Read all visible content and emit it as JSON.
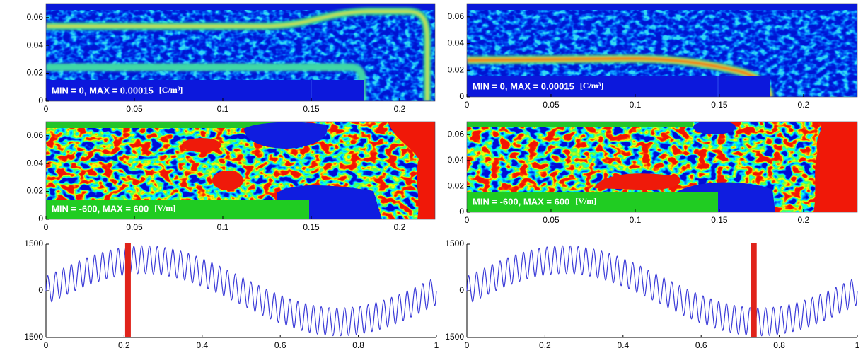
{
  "chart_data": [
    {
      "type": "heatmap",
      "annotation": "MIN = 0, MAX = 0.00015",
      "unit": "[C/m³]",
      "xlim": [
        0,
        0.22
      ],
      "ylim": [
        0,
        0.07
      ],
      "xticks": [
        0,
        0.05,
        0.1,
        0.15,
        0.2
      ],
      "yticks": [
        0,
        0.02,
        0.04,
        0.06
      ]
    },
    {
      "type": "heatmap",
      "annotation": "MIN = 0, MAX = 0.00015",
      "unit": "[C/m³]",
      "xlim": [
        0,
        0.232
      ],
      "ylim": [
        0,
        0.07
      ],
      "xticks": [
        0,
        0.05,
        0.1,
        0.15,
        0.2
      ],
      "yticks": [
        0,
        0.02,
        0.04,
        0.06
      ]
    },
    {
      "type": "heatmap",
      "annotation": "MIN = -600, MAX = 600",
      "unit": "[V/m]",
      "xlim": [
        0,
        0.22
      ],
      "ylim": [
        0,
        0.07
      ],
      "xticks": [
        0,
        0.05,
        0.1,
        0.15,
        0.2
      ],
      "yticks": [
        0,
        0.02,
        0.04,
        0.06
      ]
    },
    {
      "type": "heatmap",
      "annotation": "MIN = -600, MAX = 600",
      "unit": "[V/m]",
      "xlim": [
        0,
        0.232
      ],
      "ylim": [
        0,
        0.07
      ],
      "xticks": [
        0,
        0.05,
        0.1,
        0.15,
        0.2
      ],
      "yticks": [
        0,
        0.02,
        0.04,
        0.06
      ]
    },
    {
      "type": "line",
      "xlim": [
        0,
        1
      ],
      "ylim": [
        -1500,
        1500
      ],
      "xticks": [
        0,
        0.2,
        0.4,
        0.6,
        0.8,
        1
      ],
      "yticks": [
        {
          "value": -1500,
          "label": "1500"
        },
        0,
        1500
      ],
      "cursor_x": 0.21,
      "cursor_color": "#e0231a",
      "x": [
        0,
        0.005,
        0.015,
        0.025,
        0.035,
        0.045,
        0.055,
        0.065,
        0.075,
        0.085,
        0.095,
        0.105,
        0.115,
        0.125,
        0.135,
        0.145,
        0.155,
        0.165,
        0.175,
        0.185,
        0.195,
        0.205,
        0.215,
        0.225,
        0.235,
        0.245,
        0.255,
        0.265,
        0.275,
        0.285,
        0.295,
        0.305,
        0.315,
        0.325,
        0.335,
        0.345,
        0.355,
        0.365,
        0.375,
        0.385,
        0.395,
        0.405,
        0.415,
        0.425,
        0.435,
        0.445,
        0.455,
        0.465,
        0.475,
        0.485,
        0.495,
        0.505,
        0.515,
        0.525,
        0.535,
        0.545,
        0.555,
        0.565,
        0.575,
        0.585,
        0.595,
        0.605,
        0.615,
        0.625,
        0.635,
        0.645,
        0.655,
        0.665,
        0.675,
        0.685,
        0.695,
        0.705,
        0.715,
        0.725,
        0.735,
        0.745,
        0.755,
        0.765,
        0.775,
        0.785,
        0.795,
        0.805,
        0.815,
        0.825,
        0.835,
        0.845,
        0.855,
        0.865,
        0.875,
        0.885,
        0.895,
        0.905,
        0.915,
        0.925,
        0.935,
        0.945,
        0.955,
        0.965,
        0.975,
        0.985,
        0.995,
        1
      ],
      "series": [
        {
          "color": "#3a3ad8",
          "values": [
            0,
            481,
            -356,
            606,
            -232,
            729,
            -111,
            847,
            4,
            959,
            112,
            1063,
            211,
            1157,
            300,
            1240,
            377,
            1311,
            441,
            1368,
            491,
            1410,
            526,
            1438,
            546,
            1450,
            550,
            1446,
            538,
            1426,
            510,
            1391,
            468,
            1341,
            411,
            1277,
            340,
            1200,
            257,
            1111,
            163,
            1012,
            59,
            904,
            -53,
            789,
            -171,
            668,
            -294,
            544,
            -419,
            419,
            -544,
            294,
            -668,
            171,
            -789,
            53,
            -904,
            -59,
            -1012,
            -163,
            -1111,
            -257,
            -1200,
            -340,
            -1277,
            -411,
            -1341,
            -468,
            -1391,
            -510,
            -1426,
            -538,
            -1446,
            -550,
            -1450,
            -546,
            -1438,
            -526,
            -1410,
            -491,
            -1368,
            -441,
            -1311,
            -377,
            -1240,
            -300,
            -1157,
            -211,
            -1063,
            -112,
            -959,
            -4,
            -847,
            111,
            -729,
            232,
            -606,
            356,
            -481,
            0
          ]
        }
      ]
    },
    {
      "type": "line",
      "xlim": [
        0,
        1
      ],
      "ylim": [
        -1500,
        1500
      ],
      "xticks": [
        0,
        0.2,
        0.4,
        0.6,
        0.8,
        1
      ],
      "yticks": [
        {
          "value": -1500,
          "label": "1500"
        },
        0,
        1500
      ],
      "cursor_x": 0.735,
      "cursor_color": "#e0231a",
      "x": [
        0,
        0.005,
        0.015,
        0.025,
        0.035,
        0.045,
        0.055,
        0.065,
        0.075,
        0.085,
        0.095,
        0.105,
        0.115,
        0.125,
        0.135,
        0.145,
        0.155,
        0.165,
        0.175,
        0.185,
        0.195,
        0.205,
        0.215,
        0.225,
        0.235,
        0.245,
        0.255,
        0.265,
        0.275,
        0.285,
        0.295,
        0.305,
        0.315,
        0.325,
        0.335,
        0.345,
        0.355,
        0.365,
        0.375,
        0.385,
        0.395,
        0.405,
        0.415,
        0.425,
        0.435,
        0.445,
        0.455,
        0.465,
        0.475,
        0.485,
        0.495,
        0.505,
        0.515,
        0.525,
        0.535,
        0.545,
        0.555,
        0.565,
        0.575,
        0.585,
        0.595,
        0.605,
        0.615,
        0.625,
        0.635,
        0.645,
        0.655,
        0.665,
        0.675,
        0.685,
        0.695,
        0.705,
        0.715,
        0.725,
        0.735,
        0.745,
        0.755,
        0.765,
        0.775,
        0.785,
        0.795,
        0.805,
        0.815,
        0.825,
        0.835,
        0.845,
        0.855,
        0.865,
        0.875,
        0.885,
        0.895,
        0.905,
        0.915,
        0.925,
        0.935,
        0.945,
        0.955,
        0.965,
        0.975,
        0.985,
        0.995,
        1
      ],
      "series": [
        {
          "color": "#3a3ad8",
          "values": [
            0,
            481,
            -356,
            606,
            -232,
            729,
            -111,
            847,
            4,
            959,
            112,
            1063,
            211,
            1157,
            300,
            1240,
            377,
            1311,
            441,
            1368,
            491,
            1410,
            526,
            1438,
            546,
            1450,
            550,
            1446,
            538,
            1426,
            510,
            1391,
            468,
            1341,
            411,
            1277,
            340,
            1200,
            257,
            1111,
            163,
            1012,
            59,
            904,
            -53,
            789,
            -171,
            668,
            -294,
            544,
            -419,
            419,
            -544,
            294,
            -668,
            171,
            -789,
            53,
            -904,
            -59,
            -1012,
            -163,
            -1111,
            -257,
            -1200,
            -340,
            -1277,
            -411,
            -1341,
            -468,
            -1391,
            -510,
            -1426,
            -538,
            -1446,
            -550,
            -1450,
            -546,
            -1438,
            -526,
            -1410,
            -491,
            -1368,
            -441,
            -1311,
            -377,
            -1240,
            -300,
            -1157,
            -211,
            -1063,
            -112,
            -959,
            -4,
            -847,
            111,
            -729,
            232,
            -606,
            356,
            -481,
            0
          ]
        }
      ]
    }
  ]
}
